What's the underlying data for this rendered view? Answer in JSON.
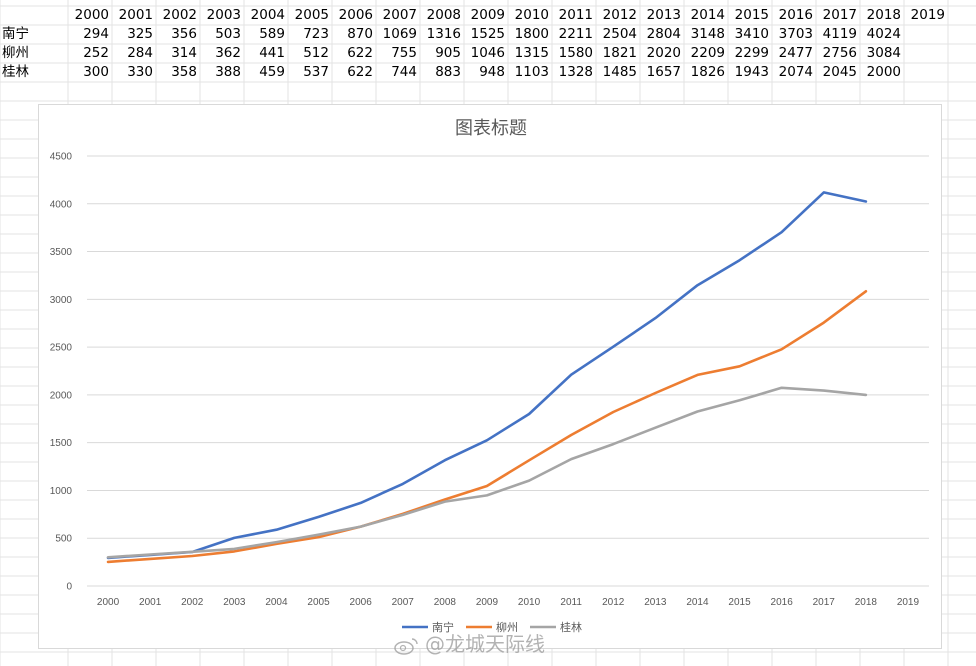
{
  "table": {
    "header_years": [
      "2000",
      "2001",
      "2002",
      "2003",
      "2004",
      "2005",
      "2006",
      "2007",
      "2008",
      "2009",
      "2010",
      "2011",
      "2012",
      "2013",
      "2014",
      "2015",
      "2016",
      "2017",
      "2018",
      "2019"
    ],
    "rows": [
      {
        "label": "南宁",
        "values": [
          "294",
          "325",
          "356",
          "503",
          "589",
          "723",
          "870",
          "1069",
          "1316",
          "1525",
          "1800",
          "2211",
          "2504",
          "2804",
          "3148",
          "3410",
          "3703",
          "4119",
          "4024",
          ""
        ]
      },
      {
        "label": "柳州",
        "values": [
          "252",
          "284",
          "314",
          "362",
          "441",
          "512",
          "622",
          "755",
          "905",
          "1046",
          "1315",
          "1580",
          "1821",
          "2020",
          "2209",
          "2299",
          "2477",
          "2756",
          "3084",
          ""
        ]
      },
      {
        "label": "桂林",
        "values": [
          "300",
          "330",
          "358",
          "388",
          "459",
          "537",
          "622",
          "744",
          "883",
          "948",
          "1103",
          "1328",
          "1485",
          "1657",
          "1826",
          "1943",
          "2074",
          "2045",
          "2000",
          ""
        ]
      }
    ]
  },
  "chart_data": {
    "type": "line",
    "title": "图表标题",
    "categories": [
      "2000",
      "2001",
      "2002",
      "2003",
      "2004",
      "2005",
      "2006",
      "2007",
      "2008",
      "2009",
      "2010",
      "2011",
      "2012",
      "2013",
      "2014",
      "2015",
      "2016",
      "2017",
      "2018",
      "2019"
    ],
    "ylim": [
      0,
      4500
    ],
    "yticks": [
      0,
      500,
      1000,
      1500,
      2000,
      2500,
      3000,
      3500,
      4000,
      4500
    ],
    "grid": true,
    "legend_position": "bottom",
    "series": [
      {
        "name": "南宁",
        "color": "#4472c4",
        "values": [
          294,
          325,
          356,
          503,
          589,
          723,
          870,
          1069,
          1316,
          1525,
          1800,
          2211,
          2504,
          2804,
          3148,
          3410,
          3703,
          4119,
          4024,
          null
        ]
      },
      {
        "name": "柳州",
        "color": "#ed7d31",
        "values": [
          252,
          284,
          314,
          362,
          441,
          512,
          622,
          755,
          905,
          1046,
          1315,
          1580,
          1821,
          2020,
          2209,
          2299,
          2477,
          2756,
          3084,
          null
        ]
      },
      {
        "name": "桂林",
        "color": "#a5a5a5",
        "values": [
          300,
          330,
          358,
          388,
          459,
          537,
          622,
          744,
          883,
          948,
          1103,
          1328,
          1485,
          1657,
          1826,
          1943,
          2074,
          2045,
          2000,
          null
        ]
      }
    ]
  },
  "watermark": {
    "text": "@龙城天际线"
  }
}
